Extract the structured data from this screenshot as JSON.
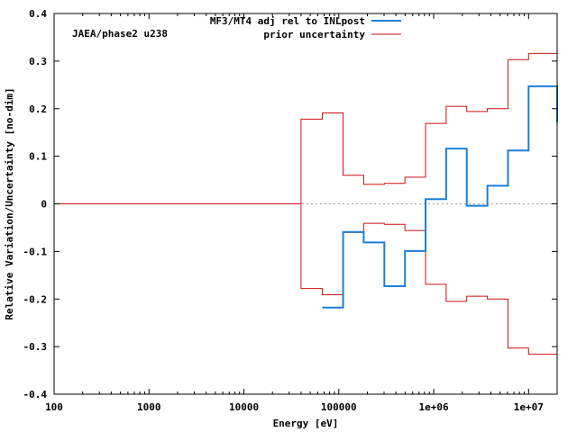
{
  "chart_data": {
    "type": "line",
    "xscale": "log",
    "xlim": [
      100,
      20000000
    ],
    "ylim": [
      -0.4,
      0.4
    ],
    "xlabel": "Energy [eV]",
    "ylabel": "Relative Variation/Uncertainty [no-dim]",
    "annotation": "JAEA/phase2 u238",
    "legend_position": "top-center",
    "x_ticks": [
      {
        "value": 100,
        "label": "100"
      },
      {
        "value": 1000,
        "label": "1000"
      },
      {
        "value": 10000,
        "label": "10000"
      },
      {
        "value": 100000,
        "label": "100000"
      },
      {
        "value": 1000000,
        "label": "1e+06"
      },
      {
        "value": 10000000,
        "label": "1e+07"
      }
    ],
    "y_ticks": [
      {
        "value": 0.4,
        "label": "0.4"
      },
      {
        "value": 0.3,
        "label": "0.3"
      },
      {
        "value": 0.2,
        "label": "0.2"
      },
      {
        "value": 0.1,
        "label": "0.1"
      },
      {
        "value": 0,
        "label": "0"
      },
      {
        "value": -0.1,
        "label": "-0.1"
      },
      {
        "value": -0.2,
        "label": "-0.2"
      },
      {
        "value": -0.3,
        "label": "-0.3"
      },
      {
        "value": -0.4,
        "label": "-0.4"
      }
    ],
    "zero_line": true,
    "series": [
      {
        "name": "MF3/MT4 adj rel to INLpost",
        "color": "#1a7fd9",
        "step": true,
        "x": [
          67000,
          111000,
          183000,
          302000,
          498000,
          821000,
          1353000,
          2231000,
          3679000,
          6065000,
          10000000,
          20000000
        ],
        "values": [
          -0.218,
          -0.059,
          -0.081,
          -0.173,
          -0.099,
          0.01,
          0.116,
          -0.004,
          0.038,
          0.112,
          0.247,
          0.172
        ]
      },
      {
        "name": "prior uncertainty",
        "color": "#cc1111",
        "step": true,
        "mirror": true,
        "x": [
          100,
          40000,
          67000,
          111000,
          183000,
          302000,
          498000,
          821000,
          1353000,
          2231000,
          3679000,
          6065000,
          10000000,
          20000000
        ],
        "values": [
          0,
          0.178,
          0.191,
          0.06,
          0.041,
          0.043,
          0.056,
          0.169,
          0.205,
          0.194,
          0.2,
          0.303,
          0.316,
          0.316
        ]
      }
    ]
  }
}
